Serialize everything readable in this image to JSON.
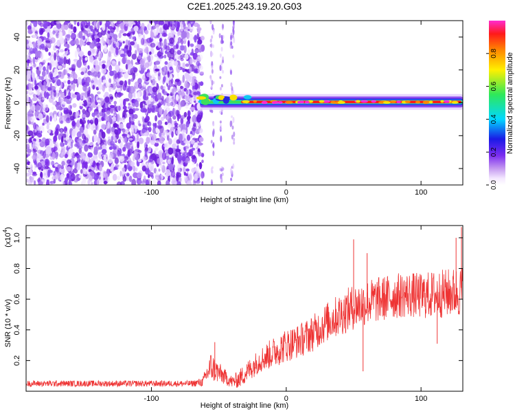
{
  "figure_title": "C2E1.2025.243.19.20.G03",
  "chart_data": [
    {
      "type": "heatmap",
      "title": "C2E1.2025.243.19.20.G03",
      "xlabel": "Height of straight line (km)",
      "ylabel": "Frequency (Hz)",
      "xlim": [
        -193,
        131
      ],
      "ylim": [
        -50,
        50
      ],
      "x_ticks": [
        -100,
        0,
        100
      ],
      "x_tick_labels": [
        "-100",
        "0",
        "100"
      ],
      "y_ticks": [
        -40,
        -20,
        0,
        20,
        40
      ],
      "y_tick_labels": [
        "-40",
        "-20",
        "0",
        "20",
        "40"
      ],
      "colorbar": {
        "label": "Normalized spectral amplitude",
        "range": [
          0,
          1
        ],
        "ticks": [
          0.0,
          0.2,
          0.4,
          0.6,
          0.8
        ],
        "tick_labels": [
          "0.0",
          "0.2",
          "0.4",
          "0.6",
          "0.8"
        ],
        "colormap": "rainbow (white-violet-blue-cyan-green-yellow-red-magenta)"
      },
      "features": [
        {
          "name": "noise_region",
          "x_range": [
            -193,
            -62
          ],
          "freq_range": [
            -50,
            50
          ],
          "amplitude_range": [
            0.0,
            0.2
          ]
        },
        {
          "name": "signal_trace",
          "x_range": [
            -64,
            131
          ],
          "center_freq": 0.5,
          "peak_amplitude": 1.0,
          "band_halfwidth_hz": 3
        },
        {
          "name": "sparse_noise_columns",
          "x_positions": [
            -55,
            -48,
            -40
          ],
          "amplitude_range": [
            0.0,
            0.2
          ]
        }
      ]
    },
    {
      "type": "line",
      "title": "",
      "xlabel": "Height of straight line (km)",
      "ylabel": "SNR (10 * v/v)",
      "y_multiplier_label": "(x10",
      "y_multiplier_exponent": "4",
      "xlim": [
        -193,
        131
      ],
      "ylim": [
        0,
        1.08
      ],
      "x_ticks": [
        -100,
        0,
        100
      ],
      "x_tick_labels": [
        "-100",
        "0",
        "100"
      ],
      "y_ticks": [
        0.2,
        0.4,
        0.6,
        0.8,
        1.0
      ],
      "y_tick_labels": [
        "0.2",
        "0.4",
        "0.6",
        "0.8",
        "1.0"
      ],
      "series": [
        {
          "name": "SNR",
          "color": "#ee3333",
          "x": [
            -193,
            -170,
            -150,
            -130,
            -110,
            -90,
            -70,
            -62,
            -56,
            -50,
            -45,
            -40,
            -35,
            -30,
            -20,
            -10,
            0,
            10,
            20,
            30,
            40,
            50,
            60,
            70,
            80,
            90,
            100,
            110,
            120,
            131
          ],
          "y": [
            0.05,
            0.05,
            0.05,
            0.05,
            0.05,
            0.05,
            0.05,
            0.06,
            0.16,
            0.12,
            0.09,
            0.06,
            0.08,
            0.12,
            0.2,
            0.25,
            0.3,
            0.33,
            0.38,
            0.45,
            0.5,
            0.55,
            0.58,
            0.6,
            0.62,
            0.63,
            0.62,
            0.63,
            0.64,
            0.65
          ],
          "noise_halfwidth": [
            0.02,
            0.02,
            0.02,
            0.02,
            0.02,
            0.02,
            0.02,
            0.03,
            0.1,
            0.07,
            0.05,
            0.04,
            0.06,
            0.07,
            0.08,
            0.1,
            0.11,
            0.11,
            0.12,
            0.13,
            0.14,
            0.15,
            0.15,
            0.15,
            0.15,
            0.15,
            0.15,
            0.16,
            0.16,
            0.17
          ],
          "spikes": [
            {
              "x": -53,
              "y": 0.32
            },
            {
              "x": 50,
              "y": 0.99
            },
            {
              "x": 60,
              "y": 0.9
            },
            {
              "x": 57,
              "y": 0.13
            },
            {
              "x": 112,
              "y": 0.31
            },
            {
              "x": 126,
              "y": 1.0
            },
            {
              "x": 130,
              "y": 1.07
            }
          ]
        }
      ]
    }
  ]
}
